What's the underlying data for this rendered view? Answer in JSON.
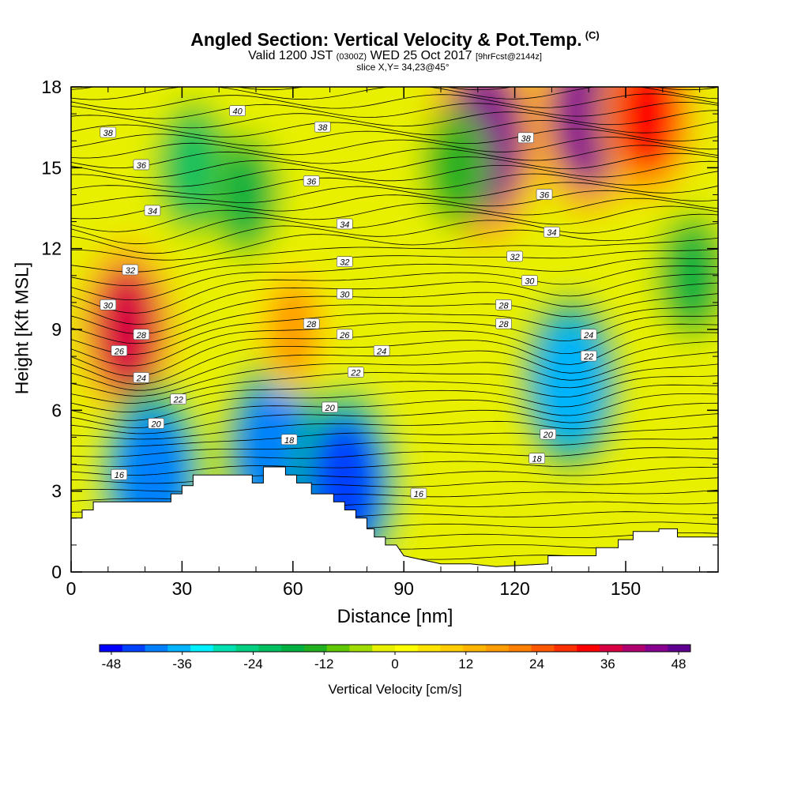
{
  "header": {
    "title": "Angled Section: Vertical Velocity & Pot.Temp.",
    "corner_mark": "(C)",
    "valid_prefix": "Valid 1200 JST",
    "valid_zulu": "(0300Z)",
    "valid_date": "WED 25 Oct 2017",
    "forecast": "[9hrFcst@2144z]",
    "slice": "slice X,Y= 34,23@45°"
  },
  "chart_data": {
    "type": "heatmap",
    "xlabel": "Distance [nm]",
    "ylabel": "Height [Kft MSL]",
    "xlim": [
      0,
      175
    ],
    "ylim": [
      0,
      18
    ],
    "x_ticks": [
      0,
      30,
      60,
      90,
      120,
      150
    ],
    "y_ticks": [
      0,
      3,
      6,
      9,
      12,
      15,
      18
    ],
    "fill_variable": "Vertical Velocity [cm/s]",
    "colorbar": {
      "label": "Vertical Velocity [cm/s]",
      "min": -50,
      "max": 50,
      "step": 4,
      "tick_values": [
        -48,
        -36,
        -24,
        -12,
        0,
        12,
        24,
        36,
        48
      ],
      "colors": [
        "#0000ff",
        "#0040ff",
        "#0080ff",
        "#00b4ff",
        "#00f0ff",
        "#00e0b0",
        "#00d080",
        "#00c060",
        "#00b040",
        "#20b020",
        "#60c800",
        "#a0dc00",
        "#e8f000",
        "#ffff00",
        "#ffe400",
        "#ffcc00",
        "#ffb400",
        "#ff9c00",
        "#ff8000",
        "#ff5800",
        "#ff3000",
        "#ff0000",
        "#d80040",
        "#b00070",
        "#880090",
        "#600090"
      ]
    },
    "vertical_velocity_cells": [
      {
        "x": 15,
        "y": 9,
        "value": 38
      },
      {
        "x": 22,
        "y": 3.5,
        "value": -42
      },
      {
        "x": 33,
        "y": 15,
        "value": -20
      },
      {
        "x": 47,
        "y": 14,
        "value": -16
      },
      {
        "x": 55,
        "y": 4.5,
        "value": -40
      },
      {
        "x": 74,
        "y": 3.2,
        "value": -44
      },
      {
        "x": 112,
        "y": 16,
        "value": 48
      },
      {
        "x": 135,
        "y": 7,
        "value": -36
      },
      {
        "x": 140,
        "y": 17,
        "value": 46
      },
      {
        "x": 156,
        "y": 17,
        "value": 36
      },
      {
        "x": 104,
        "y": 15,
        "value": -14
      },
      {
        "x": 168,
        "y": 11,
        "value": -18
      },
      {
        "x": 60,
        "y": 9,
        "value": 20
      }
    ],
    "isentrope_labels": [
      {
        "value": 40,
        "x": 45,
        "y": 17.1
      },
      {
        "value": 38,
        "x": 10,
        "y": 16.3
      },
      {
        "value": 38,
        "x": 68,
        "y": 16.5
      },
      {
        "value": 38,
        "x": 123,
        "y": 16.1
      },
      {
        "value": 36,
        "x": 19,
        "y": 15.1
      },
      {
        "value": 36,
        "x": 65,
        "y": 14.5
      },
      {
        "value": 36,
        "x": 128,
        "y": 14.0
      },
      {
        "value": 34,
        "x": 22,
        "y": 13.4
      },
      {
        "value": 34,
        "x": 74,
        "y": 12.9
      },
      {
        "value": 34,
        "x": 130,
        "y": 12.6
      },
      {
        "value": 32,
        "x": 16,
        "y": 11.2
      },
      {
        "value": 32,
        "x": 74,
        "y": 11.5
      },
      {
        "value": 32,
        "x": 120,
        "y": 11.7
      },
      {
        "value": 30,
        "x": 10,
        "y": 9.9
      },
      {
        "value": 30,
        "x": 74,
        "y": 10.3
      },
      {
        "value": 30,
        "x": 124,
        "y": 10.8
      },
      {
        "value": 28,
        "x": 19,
        "y": 8.8
      },
      {
        "value": 28,
        "x": 65,
        "y": 9.2
      },
      {
        "value": 28,
        "x": 117,
        "y": 9.9
      },
      {
        "value": 28,
        "x": 117,
        "y": 9.2
      },
      {
        "value": 26,
        "x": 13,
        "y": 8.2
      },
      {
        "value": 26,
        "x": 74,
        "y": 8.8
      },
      {
        "value": 24,
        "x": 19,
        "y": 7.2
      },
      {
        "value": 24,
        "x": 84,
        "y": 8.2
      },
      {
        "value": 24,
        "x": 140,
        "y": 8.8
      },
      {
        "value": 22,
        "x": 29,
        "y": 6.4
      },
      {
        "value": 22,
        "x": 77,
        "y": 7.4
      },
      {
        "value": 22,
        "x": 140,
        "y": 8.0
      },
      {
        "value": 20,
        "x": 23,
        "y": 5.5
      },
      {
        "value": 20,
        "x": 70,
        "y": 6.1
      },
      {
        "value": 20,
        "x": 129,
        "y": 5.1
      },
      {
        "value": 18,
        "x": 59,
        "y": 4.9
      },
      {
        "value": 18,
        "x": 126,
        "y": 4.2
      },
      {
        "value": 16,
        "x": 13,
        "y": 3.6
      },
      {
        "value": 16,
        "x": 94,
        "y": 2.9
      }
    ],
    "terrain_profile": [
      [
        0,
        2.0
      ],
      [
        3,
        2.0
      ],
      [
        3,
        2.3
      ],
      [
        6,
        2.3
      ],
      [
        6,
        2.6
      ],
      [
        27,
        2.6
      ],
      [
        27,
        2.9
      ],
      [
        30,
        2.9
      ],
      [
        30,
        3.2
      ],
      [
        33,
        3.2
      ],
      [
        33,
        3.6
      ],
      [
        49,
        3.6
      ],
      [
        49,
        3.3
      ],
      [
        52,
        3.3
      ],
      [
        52,
        3.9
      ],
      [
        58,
        3.9
      ],
      [
        58,
        3.6
      ],
      [
        61,
        3.6
      ],
      [
        61,
        3.3
      ],
      [
        65,
        3.3
      ],
      [
        65,
        2.9
      ],
      [
        71,
        2.9
      ],
      [
        71,
        2.6
      ],
      [
        74,
        2.6
      ],
      [
        74,
        2.3
      ],
      [
        77,
        2.3
      ],
      [
        77,
        2.0
      ],
      [
        80,
        2.0
      ],
      [
        80,
        1.6
      ],
      [
        82,
        1.6
      ],
      [
        82,
        1.3
      ],
      [
        85,
        1.3
      ],
      [
        85,
        1.0
      ],
      [
        88,
        1.0
      ],
      [
        90,
        0.6
      ],
      [
        100,
        0.3
      ],
      [
        108,
        0.3
      ],
      [
        115,
        0.2
      ],
      [
        129,
        0.3
      ],
      [
        129,
        0.6
      ],
      [
        142,
        0.6
      ],
      [
        142,
        0.9
      ],
      [
        148,
        0.9
      ],
      [
        148,
        1.2
      ],
      [
        152,
        1.2
      ],
      [
        152,
        1.5
      ],
      [
        159,
        1.5
      ],
      [
        159,
        1.6
      ],
      [
        164,
        1.6
      ],
      [
        164,
        1.3
      ],
      [
        175,
        1.3
      ]
    ]
  }
}
